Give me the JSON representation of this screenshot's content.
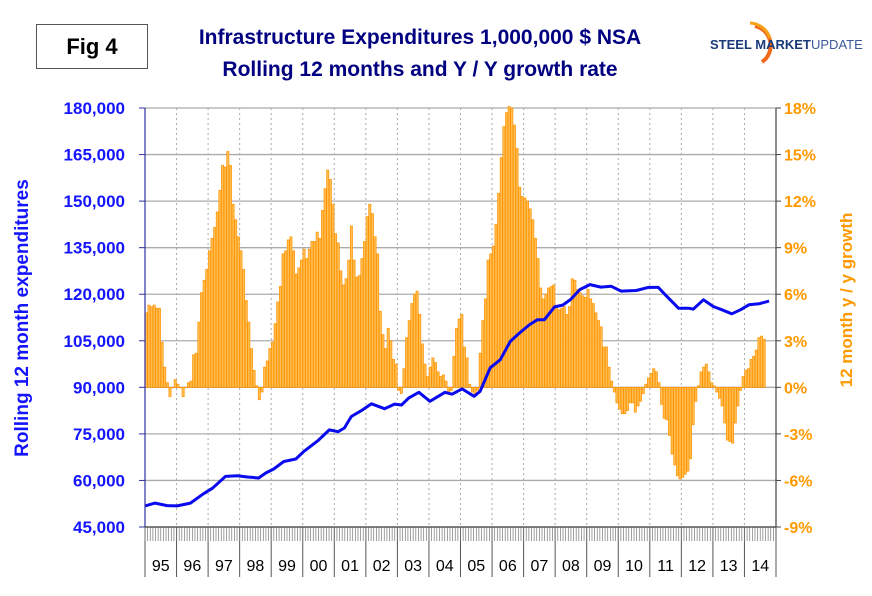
{
  "fig_label": "Fig 4",
  "logo": {
    "text_bold": "STEEL MARKET",
    "text_light": "UPDATE"
  },
  "chart_data": {
    "type": "bar+line",
    "title": "Infrastructure Expenditures 1,000,000 $ NSA",
    "subtitle": "Rolling 12 months and Y / Y growth rate",
    "ylabel_left": "Rolling 12 month expenditures",
    "ylabel_right": "12 month y / y growth",
    "ylim_left": [
      45000,
      180000
    ],
    "ylim_right": [
      -9,
      18
    ],
    "left_ticks": [
      "45,000",
      "60,000",
      "75,000",
      "90,000",
      "105,000",
      "120,000",
      "135,000",
      "150,000",
      "165,000",
      "180,000"
    ],
    "right_ticks": [
      "-9%",
      "-6%",
      "-3%",
      "0%",
      "3%",
      "6%",
      "9%",
      "12%",
      "15%",
      "18%"
    ],
    "x_labels": [
      "95",
      "96",
      "97",
      "98",
      "99",
      "00",
      "01",
      "02",
      "03",
      "04",
      "05",
      "06",
      "07",
      "08",
      "09",
      "10",
      "11",
      "12",
      "13",
      "14"
    ],
    "x_range_years": [
      1995,
      2015
    ],
    "grid": "horizontal solid, vertical dashed at year boundaries",
    "colors": {
      "line": "#0A0AEE",
      "bar_fill": "#FFBE55",
      "bar_edge": "#FF9400",
      "left_axis": "#1414FF",
      "right_axis": "#FF9900",
      "title": "#000080"
    },
    "series": [
      {
        "name": "12 month y/y growth (%)",
        "type": "bar",
        "axis": "right",
        "monthly_from": "1995-01",
        "values_by_year": {
          "1995": [
            4.8,
            5.3,
            5.2,
            5.3,
            5.1,
            5.1,
            2.9,
            1.3,
            0.3,
            -0.6,
            0.0,
            0.5
          ],
          "1996": [
            0.2,
            0.0,
            -0.6,
            0.0,
            0.3,
            0.4,
            2.1,
            2.2,
            4.2,
            6.1,
            6.9,
            7.6
          ],
          "1997": [
            8.8,
            9.6,
            10.3,
            11.3,
            12.7,
            14.3,
            14.2,
            15.2,
            14.3,
            11.8,
            10.8,
            9.7
          ],
          "1998": [
            8.8,
            7.6,
            5.6,
            4.2,
            2.5,
            1.1,
            0.1,
            -0.8,
            -0.3,
            1.3,
            1.7,
            2.5
          ],
          "1999": [
            2.9,
            4.1,
            5.5,
            6.5,
            8.6,
            8.8,
            9.5,
            9.7,
            8.8,
            7.3,
            7.7,
            8.2
          ],
          "2000": [
            8.9,
            8.3,
            8.9,
            9.4,
            9.4,
            10.0,
            9.6,
            11.4,
            12.8,
            14.0,
            13.4,
            11.8
          ],
          "2001": [
            9.9,
            9.3,
            7.5,
            6.6,
            7.0,
            8.2,
            10.4,
            8.2,
            7.1,
            7.2,
            8.3,
            9.4
          ],
          "2002": [
            11.0,
            11.8,
            11.2,
            9.7,
            8.6,
            4.9,
            3.4,
            2.5,
            3.8,
            3.0,
            1.8,
            1.5
          ],
          "2003": [
            -0.2,
            -0.4,
            1.2,
            3.2,
            4.3,
            5.4,
            6.0,
            6.2,
            4.7,
            2.8,
            1.5,
            0.7
          ],
          "2004": [
            1.3,
            1.9,
            1.6,
            1.0,
            0.7,
            0.8,
            0.4,
            -0.3,
            -0.2,
            2.0,
            3.8,
            4.4
          ],
          "2005": [
            4.7,
            2.6,
            1.9,
            0.2,
            -0.3,
            -0.4,
            -0.2,
            2.2,
            4.3,
            5.7,
            8.2,
            8.6
          ],
          "2006": [
            9.1,
            10.5,
            12.5,
            14.8,
            16.8,
            17.7,
            18.1,
            18.0,
            16.9,
            15.4,
            12.9,
            12.3
          ],
          "2007": [
            12.2,
            12.0,
            11.5,
            10.8,
            9.6,
            8.3,
            6.4,
            5.7,
            6.0,
            6.4,
            6.5,
            6.6
          ],
          "2008": [
            5.2,
            5.0,
            5.1,
            5.2,
            4.7,
            5.2,
            7.0,
            6.9,
            6.3,
            6.1,
            5.9,
            5.8
          ],
          "2009": [
            6.3,
            5.7,
            5.4,
            4.8,
            4.3,
            3.9,
            2.6,
            2.6,
            1.3,
            0.4,
            -0.3,
            -1.0
          ],
          "2010": [
            -1.4,
            -1.7,
            -1.7,
            -1.5,
            -1.0,
            -1.0,
            -1.6,
            -1.2,
            -0.9,
            -0.4,
            0.2,
            0.6
          ],
          "2011": [
            0.9,
            1.2,
            1.0,
            0.3,
            -1.1,
            -2.0,
            -2.1,
            -3.1,
            -4.3,
            -5.0,
            -5.7,
            -5.9
          ],
          "2012": [
            -5.8,
            -5.6,
            -5.4,
            -4.6,
            -2.4,
            -0.9,
            0.1,
            1.0,
            1.3,
            1.5,
            1.0,
            0.3
          ],
          "2013": [
            0.1,
            -0.3,
            -0.7,
            -1.2,
            -2.3,
            -3.4,
            -3.5,
            -3.6,
            -2.3,
            -1.2,
            -0.2,
            0.7
          ],
          "2014": [
            1.1,
            1.2,
            1.8,
            2.0,
            2.4,
            3.2,
            3.3,
            3.1
          ]
        }
      },
      {
        "name": "Rolling 12 month expenditures",
        "type": "line",
        "axis": "left",
        "points": [
          [
            1995.0,
            51800
          ],
          [
            1995.32,
            52700
          ],
          [
            1995.7,
            51900
          ],
          [
            1996.02,
            51800
          ],
          [
            1996.44,
            52700
          ],
          [
            1996.85,
            55700
          ],
          [
            1997.14,
            57500
          ],
          [
            1997.55,
            61300
          ],
          [
            1997.93,
            61500
          ],
          [
            1998.25,
            61100
          ],
          [
            1998.6,
            60800
          ],
          [
            1998.83,
            62400
          ],
          [
            1999.08,
            63700
          ],
          [
            1999.4,
            66100
          ],
          [
            1999.78,
            66900
          ],
          [
            2000.04,
            69400
          ],
          [
            2000.49,
            72900
          ],
          [
            2000.84,
            76300
          ],
          [
            2001.12,
            75700
          ],
          [
            2001.32,
            76900
          ],
          [
            2001.54,
            80600
          ],
          [
            2001.86,
            82500
          ],
          [
            2002.18,
            84700
          ],
          [
            2002.59,
            83100
          ],
          [
            2002.91,
            84600
          ],
          [
            2003.13,
            84300
          ],
          [
            2003.36,
            86600
          ],
          [
            2003.68,
            88400
          ],
          [
            2004.03,
            85500
          ],
          [
            2004.51,
            88400
          ],
          [
            2004.73,
            87800
          ],
          [
            2005.05,
            89500
          ],
          [
            2005.43,
            87100
          ],
          [
            2005.62,
            88700
          ],
          [
            2005.94,
            96300
          ],
          [
            2006.26,
            98900
          ],
          [
            2006.58,
            104800
          ],
          [
            2006.87,
            107500
          ],
          [
            2007.19,
            110200
          ],
          [
            2007.44,
            111800
          ],
          [
            2007.66,
            111800
          ],
          [
            2007.98,
            115900
          ],
          [
            2008.24,
            116500
          ],
          [
            2008.49,
            118300
          ],
          [
            2008.78,
            121500
          ],
          [
            2009.1,
            123100
          ],
          [
            2009.45,
            122300
          ],
          [
            2009.77,
            122600
          ],
          [
            2010.09,
            121000
          ],
          [
            2010.57,
            121200
          ],
          [
            2010.95,
            122200
          ],
          [
            2011.27,
            122200
          ],
          [
            2011.49,
            119800
          ],
          [
            2011.91,
            115500
          ],
          [
            2012.23,
            115500
          ],
          [
            2012.38,
            115200
          ],
          [
            2012.7,
            118200
          ],
          [
            2013.02,
            116000
          ],
          [
            2013.28,
            115000
          ],
          [
            2013.6,
            113700
          ],
          [
            2013.88,
            115000
          ],
          [
            2014.14,
            116600
          ],
          [
            2014.46,
            116900
          ],
          [
            2014.78,
            117800
          ]
        ]
      }
    ]
  }
}
